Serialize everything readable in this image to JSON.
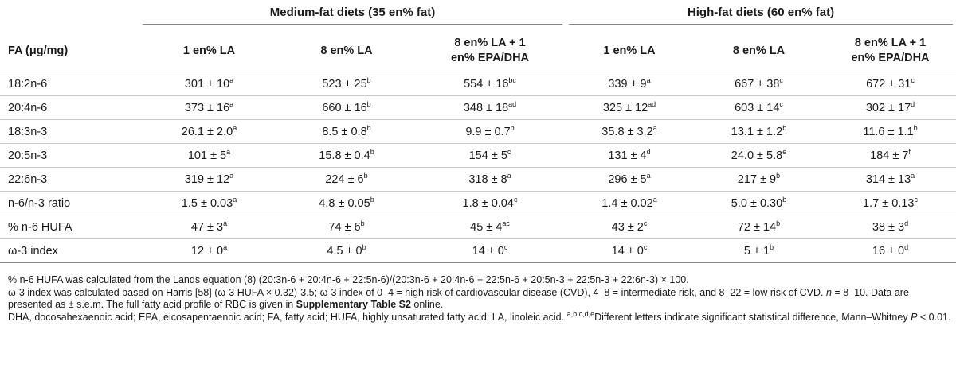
{
  "groups": {
    "medium": "Medium-fat diets (35 en% fat)",
    "high": "High-fat diets (60 en% fat)"
  },
  "headers": {
    "fa": "FA (μg/mg)",
    "la1": "1 en% LA",
    "la8": "8 en% LA",
    "epa_line1": "8 en% LA + 1",
    "epa_line2": "en% EPA/DHA"
  },
  "rows": [
    {
      "fa": "18:2n-6",
      "cells": [
        [
          "301 ± 10",
          "a"
        ],
        [
          "523 ± 25",
          "b"
        ],
        [
          "554 ± 16",
          "bc"
        ],
        [
          "339 ± 9",
          "a"
        ],
        [
          "667 ± 38",
          "c"
        ],
        [
          "672 ± 31",
          "c"
        ]
      ]
    },
    {
      "fa": "20:4n-6",
      "cells": [
        [
          "373 ± 16",
          "a"
        ],
        [
          "660 ± 16",
          "b"
        ],
        [
          "348 ± 18",
          "ad"
        ],
        [
          "325 ± 12",
          "ad"
        ],
        [
          "603 ± 14",
          "c"
        ],
        [
          "302 ± 17",
          "d"
        ]
      ]
    },
    {
      "fa": "18:3n-3",
      "cells": [
        [
          "26.1 ± 2.0",
          "a"
        ],
        [
          "8.5 ± 0.8",
          "b"
        ],
        [
          "9.9 ± 0.7",
          "b"
        ],
        [
          "35.8 ± 3.2",
          "a"
        ],
        [
          "13.1 ± 1.2",
          "b"
        ],
        [
          "11.6 ± 1.1",
          "b"
        ]
      ]
    },
    {
      "fa": "20:5n-3",
      "cells": [
        [
          "101 ± 5",
          "a"
        ],
        [
          "15.8 ± 0.4",
          "b"
        ],
        [
          "154 ± 5",
          "c"
        ],
        [
          "131 ± 4",
          "d"
        ],
        [
          "24.0 ± 5.8",
          "e"
        ],
        [
          "184 ± 7",
          "f"
        ]
      ]
    },
    {
      "fa": "22:6n-3",
      "cells": [
        [
          "319 ± 12",
          "a"
        ],
        [
          "224 ± 6",
          "b"
        ],
        [
          "318 ± 8",
          "a"
        ],
        [
          "296 ± 5",
          "a"
        ],
        [
          "217 ± 9",
          "b"
        ],
        [
          "314 ± 13",
          "a"
        ]
      ]
    },
    {
      "fa": "n-6/n-3 ratio",
      "cells": [
        [
          "1.5 ± 0.03",
          "a"
        ],
        [
          "4.8 ± 0.05",
          "b"
        ],
        [
          "1.8 ± 0.04",
          "c"
        ],
        [
          "1.4 ± 0.02",
          "a"
        ],
        [
          "5.0 ± 0.30",
          "b"
        ],
        [
          "1.7 ± 0.13",
          "c"
        ]
      ]
    },
    {
      "fa": "% n-6 HUFA",
      "cells": [
        [
          "47 ± 3",
          "a"
        ],
        [
          "74 ± 6",
          "b"
        ],
        [
          "45 ± 4",
          "ac"
        ],
        [
          "43 ± 2",
          "c"
        ],
        [
          "72 ± 14",
          "b"
        ],
        [
          "38 ± 3",
          "d"
        ]
      ]
    },
    {
      "fa": "ω-3 index",
      "cells": [
        [
          "12 ± 0",
          "a"
        ],
        [
          "4.5 ± 0",
          "b"
        ],
        [
          "14 ± 0",
          "c"
        ],
        [
          "14 ± 0",
          "c"
        ],
        [
          "5 ± 1",
          "b"
        ],
        [
          "16 ± 0",
          "d"
        ]
      ]
    }
  ],
  "notes": {
    "line1": "% n-6 HUFA was calculated from the Lands equation (8) (20:3n-6 + 20:4n-6 + 22:5n-6)/(20:3n-6 + 20:4n-6 + 22:5n-6 + 20:5n-3 + 22:5n-3 + 22:6n-3) × 100.",
    "line2": "ω-3 index was calculated based on Harris [58] (ω-3 HUFA × 0.32)-3.5; ω-3 index of 0–4 = high risk of cardiovascular disease (CVD), 4–8 = intermediate risk, and 8–22 = low risk of CVD.",
    "n_label": "n",
    "n_value": "= 8–10. Data are presented as ± s.e.m. The full fatty acid profile of RBC is given in",
    "supp_ref": "Supplementary Table S2",
    "online": "online.",
    "abbrev": "DHA, docosahexaenoic acid; EPA, eicosapentaenoic acid; FA, fatty acid; HUFA, highly unsaturated fatty acid; LA, linoleic acid.",
    "letters_sup": "a,b,c,d,e",
    "letters_text": "Different letters indicate significant statistical difference, Mann–Whitney",
    "p_label": "P",
    "p_value": "< 0.01."
  }
}
